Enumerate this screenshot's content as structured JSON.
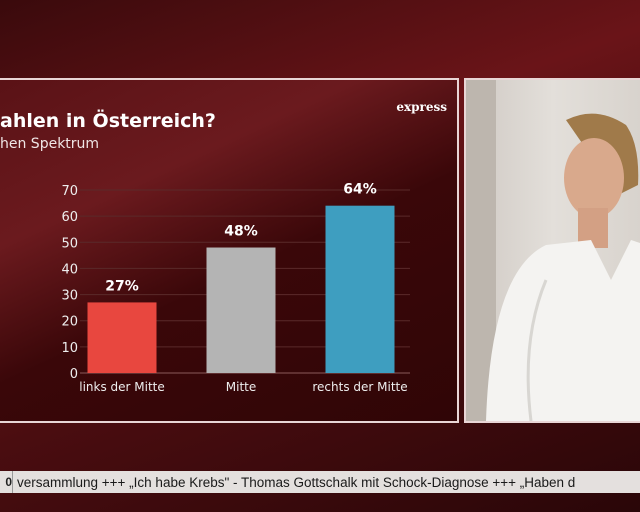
{
  "logo": "express",
  "ticker": {
    "box": "0",
    "text": "versammlung  +++ „Ich habe Krebs\" - Thomas Gottschalk mit Schock-Diagnose  +++ „Haben d"
  },
  "chart_data": {
    "type": "bar",
    "title": "ahlen in Österreich?",
    "subtitle": "hen Spektrum",
    "categories": [
      "links der Mitte",
      "Mitte",
      "rechts der Mitte"
    ],
    "values": [
      27,
      48,
      64
    ],
    "labels": [
      "27%",
      "48%",
      "64%"
    ],
    "colors": [
      "#e8473f",
      "#b4b4b4",
      "#3e9ec0"
    ],
    "yticks": [
      0,
      10,
      20,
      30,
      40,
      50,
      60,
      70
    ],
    "ylim": [
      0,
      70
    ],
    "xlabel": "",
    "ylabel": "",
    "grid": true
  }
}
